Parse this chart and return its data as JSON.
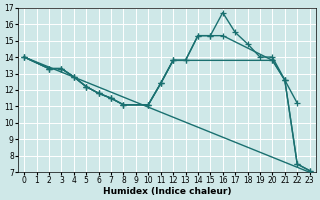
{
  "xlabel": "Humidex (Indice chaleur)",
  "bg_color": "#cfe8e8",
  "grid_color": "#ffffff",
  "line_color": "#1a7070",
  "xlim": [
    -0.5,
    23.5
  ],
  "ylim": [
    7,
    17
  ],
  "xticks": [
    0,
    1,
    2,
    3,
    4,
    5,
    6,
    7,
    8,
    9,
    10,
    11,
    12,
    13,
    14,
    15,
    16,
    17,
    18,
    19,
    20,
    21,
    22,
    23
  ],
  "yticks": [
    7,
    8,
    9,
    10,
    11,
    12,
    13,
    14,
    15,
    16,
    17
  ],
  "series": [
    {
      "comment": "straight diagonal line top-left to bottom-right",
      "x": [
        0,
        23
      ],
      "y": [
        14,
        7
      ],
      "markers_x": [],
      "markers_y": []
    },
    {
      "comment": "main peak line with markers",
      "x": [
        0,
        2,
        3,
        4,
        5,
        6,
        7,
        8,
        10,
        11,
        12,
        13,
        14,
        15,
        16,
        17,
        18,
        19,
        20,
        21,
        22
      ],
      "y": [
        14,
        13.3,
        13.3,
        12.8,
        12.2,
        11.8,
        11.5,
        11.1,
        11.1,
        12.4,
        13.8,
        13.8,
        15.3,
        15.3,
        16.7,
        15.5,
        14.8,
        14.0,
        14.0,
        12.6,
        11.2
      ],
      "markers_x": [
        0,
        2,
        3,
        4,
        5,
        6,
        7,
        8,
        10,
        11,
        12,
        13,
        14,
        15,
        16,
        17,
        18,
        19,
        20,
        21,
        22
      ],
      "markers_y": [
        14,
        13.3,
        13.3,
        12.8,
        12.2,
        11.8,
        11.5,
        11.1,
        11.1,
        12.4,
        13.8,
        13.8,
        15.3,
        15.3,
        16.7,
        15.5,
        14.8,
        14.0,
        14.0,
        12.6,
        11.2
      ]
    },
    {
      "comment": "second line flat around 13.8 then drops",
      "x": [
        0,
        2,
        3,
        4,
        5,
        6,
        7,
        8,
        10,
        11,
        12,
        13,
        14,
        15,
        16,
        20,
        21,
        22,
        23
      ],
      "y": [
        14,
        13.3,
        13.3,
        12.8,
        12.2,
        11.8,
        11.5,
        11.1,
        11.1,
        12.4,
        13.8,
        13.8,
        15.3,
        15.3,
        15.3,
        13.8,
        12.6,
        7.5,
        7.1
      ],
      "markers_x": [
        0,
        2,
        3,
        4,
        5,
        6,
        7,
        8,
        10,
        11,
        12,
        13,
        14,
        15,
        16,
        20,
        21,
        22,
        23
      ],
      "markers_y": [
        14,
        13.3,
        13.3,
        12.8,
        12.2,
        11.8,
        11.5,
        11.1,
        11.1,
        12.4,
        13.8,
        13.8,
        15.3,
        15.3,
        15.3,
        13.8,
        12.6,
        7.5,
        7.1
      ]
    },
    {
      "comment": "third line flat at 13.8 long then drops",
      "x": [
        0,
        2,
        3,
        4,
        5,
        6,
        7,
        8,
        10,
        11,
        12,
        20,
        21,
        22,
        23
      ],
      "y": [
        14,
        13.3,
        13.3,
        12.8,
        12.2,
        11.8,
        11.5,
        11.1,
        11.1,
        12.4,
        13.8,
        13.8,
        12.6,
        7.5,
        7.1
      ],
      "markers_x": [
        0,
        2,
        3,
        4,
        5,
        6,
        7,
        8,
        10,
        11,
        12,
        20,
        21,
        22,
        23
      ],
      "markers_y": [
        14,
        13.3,
        13.3,
        12.8,
        12.2,
        11.8,
        11.5,
        11.1,
        11.1,
        12.4,
        13.8,
        13.8,
        12.6,
        7.5,
        7.1
      ]
    }
  ],
  "line_width": 1.0,
  "marker": "+",
  "marker_size": 4,
  "tick_fontsize": 5.5,
  "xlabel_fontsize": 6.5
}
